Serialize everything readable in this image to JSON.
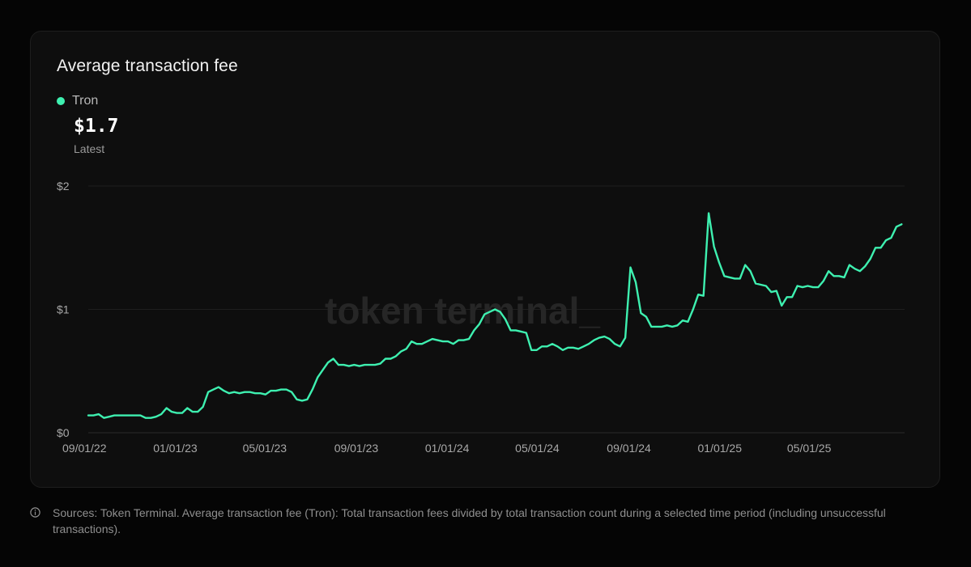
{
  "card": {
    "title": "Average transaction fee",
    "legend_label": "Tron",
    "latest_value": "$1.7",
    "latest_label": "Latest",
    "watermark": "token terminal_"
  },
  "colors": {
    "series": "#3ef0b0",
    "background": "#0e0e0e",
    "grid": "#1e1e1e"
  },
  "footnote": {
    "icon": "info-icon",
    "text": "Sources: Token Terminal. Average transaction fee (Tron): Total transaction fees divided by total transaction count during a selected time period (including unsuccessful transactions)."
  },
  "chart_data": {
    "type": "line",
    "title": "Average transaction fee",
    "xlabel": "",
    "ylabel": "",
    "ylim": [
      0,
      2
    ],
    "xlim": [
      "2022-09-01",
      "2025-09-01"
    ],
    "grid": true,
    "legend_position": "top-left",
    "y_ticks": [
      {
        "value": 0,
        "label": "$0"
      },
      {
        "value": 1,
        "label": "$1"
      },
      {
        "value": 2,
        "label": "$2"
      }
    ],
    "x_ticks": [
      {
        "date": "2022-09-01",
        "label": "09/01/22"
      },
      {
        "date": "2023-01-01",
        "label": "01/01/23"
      },
      {
        "date": "2023-05-01",
        "label": "05/01/23"
      },
      {
        "date": "2023-09-01",
        "label": "09/01/23"
      },
      {
        "date": "2024-01-01",
        "label": "01/01/24"
      },
      {
        "date": "2024-05-01",
        "label": "05/01/24"
      },
      {
        "date": "2024-09-01",
        "label": "09/01/24"
      },
      {
        "date": "2025-01-01",
        "label": "01/01/25"
      },
      {
        "date": "2025-05-01",
        "label": "05/01/25"
      }
    ],
    "series": [
      {
        "name": "Tron",
        "x": [
          "2022-09-01",
          "2022-09-08",
          "2022-09-15",
          "2022-09-22",
          "2022-09-29",
          "2022-10-06",
          "2022-10-13",
          "2022-10-20",
          "2022-10-27",
          "2022-11-03",
          "2022-11-10",
          "2022-11-17",
          "2022-11-24",
          "2022-12-01",
          "2022-12-08",
          "2022-12-15",
          "2022-12-22",
          "2022-12-29",
          "2023-01-05",
          "2023-01-12",
          "2023-01-19",
          "2023-01-26",
          "2023-02-02",
          "2023-02-09",
          "2023-02-16",
          "2023-02-23",
          "2023-03-02",
          "2023-03-09",
          "2023-03-16",
          "2023-03-23",
          "2023-03-30",
          "2023-04-06",
          "2023-04-13",
          "2023-04-20",
          "2023-04-27",
          "2023-05-04",
          "2023-05-11",
          "2023-05-18",
          "2023-05-25",
          "2023-06-01",
          "2023-06-08",
          "2023-06-15",
          "2023-06-22",
          "2023-06-29",
          "2023-07-06",
          "2023-07-13",
          "2023-07-20",
          "2023-07-27",
          "2023-08-03",
          "2023-08-10",
          "2023-08-17",
          "2023-08-24",
          "2023-08-31",
          "2023-09-07",
          "2023-09-14",
          "2023-09-21",
          "2023-09-28",
          "2023-10-05",
          "2023-10-12",
          "2023-10-19",
          "2023-10-26",
          "2023-11-02",
          "2023-11-09",
          "2023-11-16",
          "2023-11-23",
          "2023-11-30",
          "2023-12-07",
          "2023-12-14",
          "2023-12-21",
          "2023-12-28",
          "2024-01-04",
          "2024-01-11",
          "2024-01-18",
          "2024-01-25",
          "2024-02-01",
          "2024-02-08",
          "2024-02-15",
          "2024-02-22",
          "2024-02-29",
          "2024-03-07",
          "2024-03-14",
          "2024-03-21",
          "2024-03-28",
          "2024-04-04",
          "2024-04-11",
          "2024-04-18",
          "2024-04-25",
          "2024-05-02",
          "2024-05-09",
          "2024-05-16",
          "2024-05-23",
          "2024-05-30",
          "2024-06-06",
          "2024-06-13",
          "2024-06-20",
          "2024-06-27",
          "2024-07-04",
          "2024-07-11",
          "2024-07-18",
          "2024-07-25",
          "2024-08-01",
          "2024-08-08",
          "2024-08-15",
          "2024-08-22",
          "2024-08-29",
          "2024-09-05",
          "2024-09-12",
          "2024-09-19",
          "2024-09-26",
          "2024-10-03",
          "2024-10-10",
          "2024-10-17",
          "2024-10-24",
          "2024-10-31",
          "2024-11-07",
          "2024-11-14",
          "2024-11-21",
          "2024-11-28",
          "2024-12-05",
          "2024-12-12",
          "2024-12-19",
          "2024-12-26",
          "2025-01-02",
          "2025-01-09",
          "2025-01-16",
          "2025-01-23",
          "2025-01-30",
          "2025-02-06",
          "2025-02-13",
          "2025-02-20",
          "2025-02-27",
          "2025-03-06",
          "2025-03-13",
          "2025-03-20",
          "2025-03-27",
          "2025-04-03",
          "2025-04-10",
          "2025-04-17",
          "2025-04-24",
          "2025-05-01",
          "2025-05-08",
          "2025-05-15",
          "2025-05-22",
          "2025-05-29",
          "2025-06-05",
          "2025-06-12",
          "2025-06-19",
          "2025-06-26",
          "2025-07-03",
          "2025-07-10",
          "2025-07-17",
          "2025-07-24",
          "2025-07-31",
          "2025-08-07",
          "2025-08-14",
          "2025-08-21",
          "2025-08-28"
        ],
        "values": [
          0.14,
          0.14,
          0.15,
          0.12,
          0.13,
          0.14,
          0.14,
          0.14,
          0.14,
          0.14,
          0.14,
          0.12,
          0.12,
          0.13,
          0.15,
          0.2,
          0.17,
          0.16,
          0.16,
          0.2,
          0.17,
          0.17,
          0.21,
          0.33,
          0.35,
          0.37,
          0.34,
          0.32,
          0.33,
          0.32,
          0.33,
          0.33,
          0.32,
          0.32,
          0.31,
          0.34,
          0.34,
          0.35,
          0.35,
          0.33,
          0.27,
          0.26,
          0.27,
          0.35,
          0.45,
          0.51,
          0.57,
          0.6,
          0.55,
          0.55,
          0.54,
          0.55,
          0.54,
          0.55,
          0.55,
          0.55,
          0.56,
          0.6,
          0.6,
          0.62,
          0.66,
          0.68,
          0.74,
          0.72,
          0.72,
          0.74,
          0.76,
          0.75,
          0.74,
          0.74,
          0.72,
          0.75,
          0.75,
          0.76,
          0.83,
          0.88,
          0.96,
          0.98,
          1.0,
          0.98,
          0.92,
          0.83,
          0.83,
          0.82,
          0.81,
          0.67,
          0.67,
          0.7,
          0.7,
          0.72,
          0.7,
          0.67,
          0.69,
          0.69,
          0.68,
          0.7,
          0.72,
          0.75,
          0.77,
          0.78,
          0.76,
          0.72,
          0.7,
          0.77,
          1.34,
          1.22,
          0.97,
          0.94,
          0.86,
          0.86,
          0.86,
          0.87,
          0.86,
          0.87,
          0.91,
          0.9,
          1.0,
          1.12,
          1.11,
          1.78,
          1.51,
          1.38,
          1.27,
          1.26,
          1.25,
          1.25,
          1.36,
          1.31,
          1.21,
          1.2,
          1.19,
          1.14,
          1.15,
          1.03,
          1.1,
          1.1,
          1.19,
          1.18,
          1.19,
          1.18,
          1.18,
          1.23,
          1.31,
          1.27,
          1.27,
          1.26,
          1.36,
          1.33,
          1.31,
          1.35,
          1.41,
          1.5,
          1.5,
          1.56,
          1.58,
          1.67,
          1.69
        ]
      }
    ]
  }
}
